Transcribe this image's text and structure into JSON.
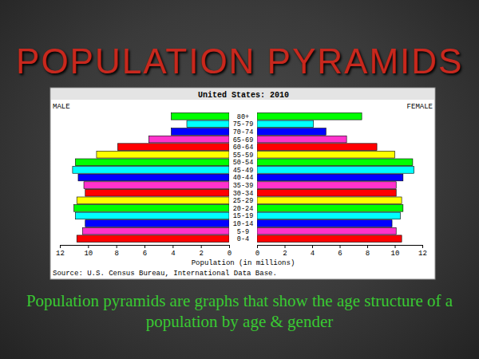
{
  "slide": {
    "title": "POPULATION PYRAMIDS",
    "caption": "Population pyramids are graphs that show the age structure of a population by age & gender"
  },
  "chart_data": {
    "type": "bar",
    "orientation": "horizontal",
    "title": "United States: 2010",
    "xlabel": "Population (in millions)",
    "source": "Source: U.S. Census Bureau, International Data Base.",
    "categories": [
      "0-4",
      "5-9",
      "10-14",
      "15-19",
      "20-24",
      "25-29",
      "30-34",
      "35-39",
      "40-44",
      "45-49",
      "50-54",
      "55-59",
      "60-64",
      "65-69",
      "70-74",
      "75-79",
      "80+"
    ],
    "colors": [
      "#ff0000",
      "#ff33cc",
      "#0000ff",
      "#00ffff",
      "#00ff00",
      "#ffff00",
      "#ff0000",
      "#ff33cc",
      "#0000ff",
      "#00ffff",
      "#00ff00",
      "#ffff00",
      "#ff0000",
      "#ff33cc",
      "#0000ff",
      "#00ffff",
      "#00ff00"
    ],
    "series": [
      {
        "name": "MALE",
        "values": [
          10.8,
          10.4,
          10.2,
          10.9,
          11.0,
          10.8,
          10.2,
          10.3,
          10.7,
          11.1,
          10.9,
          9.4,
          7.9,
          5.7,
          4.1,
          3.0,
          4.1
        ]
      },
      {
        "name": "FEMALE",
        "values": [
          10.5,
          10.1,
          9.8,
          10.4,
          10.6,
          10.5,
          10.1,
          10.1,
          10.6,
          11.4,
          11.3,
          10.0,
          8.7,
          6.5,
          5.0,
          4.1,
          7.6
        ]
      }
    ],
    "xlim": [
      0,
      12
    ],
    "xticks": [
      0,
      2,
      4,
      6,
      8,
      10,
      12
    ],
    "grid": false
  }
}
